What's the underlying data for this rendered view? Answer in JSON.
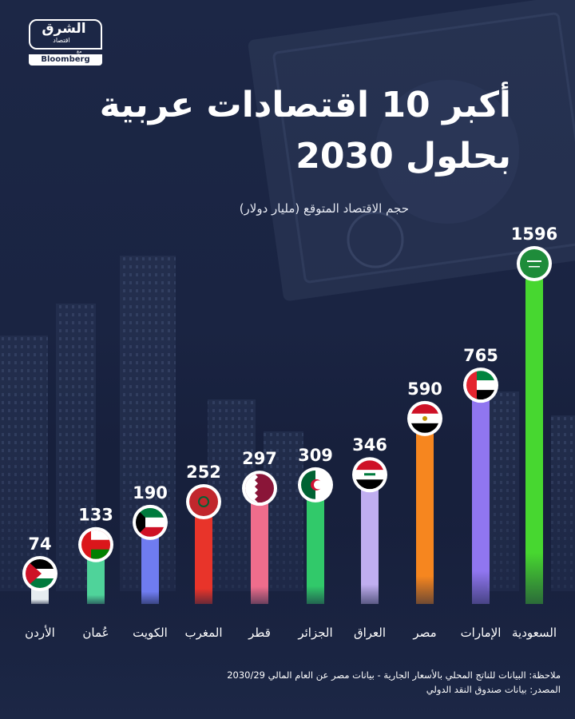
{
  "logo": {
    "main": "الشرق",
    "sub": "اقتصاد",
    "connector": "مع",
    "partner": "Bloomberg"
  },
  "header": {
    "title_line1": "أكبر 10 اقتصادات عربية",
    "title_line2": "بحلول 2030",
    "subtitle": "حجم الاقتصاد المتوقع (مليار دولار)"
  },
  "chart_data": {
    "type": "bar",
    "categories": [
      "الأردن",
      "عُمان",
      "الكويت",
      "المغرب",
      "قطر",
      "الجزائر",
      "العراق",
      "مصر",
      "الإمارات",
      "السعودية"
    ],
    "values": [
      74,
      133,
      190,
      252,
      297,
      309,
      346,
      590,
      765,
      1596
    ],
    "bar_colors": [
      "#e6ecf0",
      "#4fd39a",
      "#6f7cf0",
      "#e8342a",
      "#ef6d8c",
      "#31c96a",
      "#c0aef0",
      "#f6861f",
      "#9076f0",
      "#47d730"
    ],
    "flags": [
      "jordan-flag",
      "oman-flag",
      "kuwait-flag",
      "morocco-flag",
      "qatar-flag",
      "algeria-flag",
      "iraq-flag",
      "egypt-flag",
      "uae-flag",
      "saudi-flag"
    ],
    "title": "أكبر 10 اقتصادات عربية بحلول 2030",
    "ylabel": "حجم الاقتصاد المتوقع (مليار دولار)"
  },
  "footer": {
    "note": "ملاحظة: البيانات للناتج المحلي بالأسعار الجارية - بيانات مصر عن العام المالي 2030/29",
    "source": "المصدر: بيانات صندوق النقد الدولي"
  }
}
